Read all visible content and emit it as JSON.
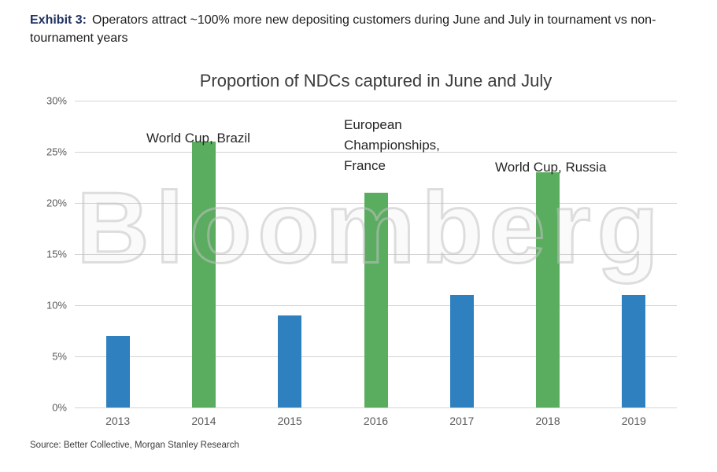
{
  "header": {
    "exhibit_label": "Exhibit 3:",
    "title_text": "Operators attract ~100% more new depositing customers during June and July in tournament vs non-tournament years"
  },
  "watermark": "Bloomberg",
  "source": "Source: Better Collective, Morgan Stanley Research",
  "chart_data": {
    "type": "bar",
    "title": "Proportion of NDCs captured in June and July",
    "categories": [
      "2013",
      "2014",
      "2015",
      "2016",
      "2017",
      "2018",
      "2019"
    ],
    "values": [
      7,
      26,
      9,
      21,
      11,
      23,
      11
    ],
    "unit": "%",
    "xlabel": "",
    "ylabel": "",
    "ylim": [
      0,
      30
    ],
    "yticks": [
      "0%",
      "5%",
      "10%",
      "15%",
      "20%",
      "25%",
      "30%"
    ],
    "grid": "horizontal",
    "legend": "none",
    "bar_types": [
      "regular",
      "tournament",
      "regular",
      "tournament",
      "regular",
      "tournament",
      "regular"
    ],
    "colors": {
      "regular": "#2E80BE",
      "tournament": "#5AAD5F"
    },
    "annotations": [
      {
        "text": "World Cup, Brazil",
        "category": "2014"
      },
      {
        "text": "European Championships, France",
        "category": "2016"
      },
      {
        "text": "World Cup, Russia",
        "category": "2018"
      }
    ]
  }
}
